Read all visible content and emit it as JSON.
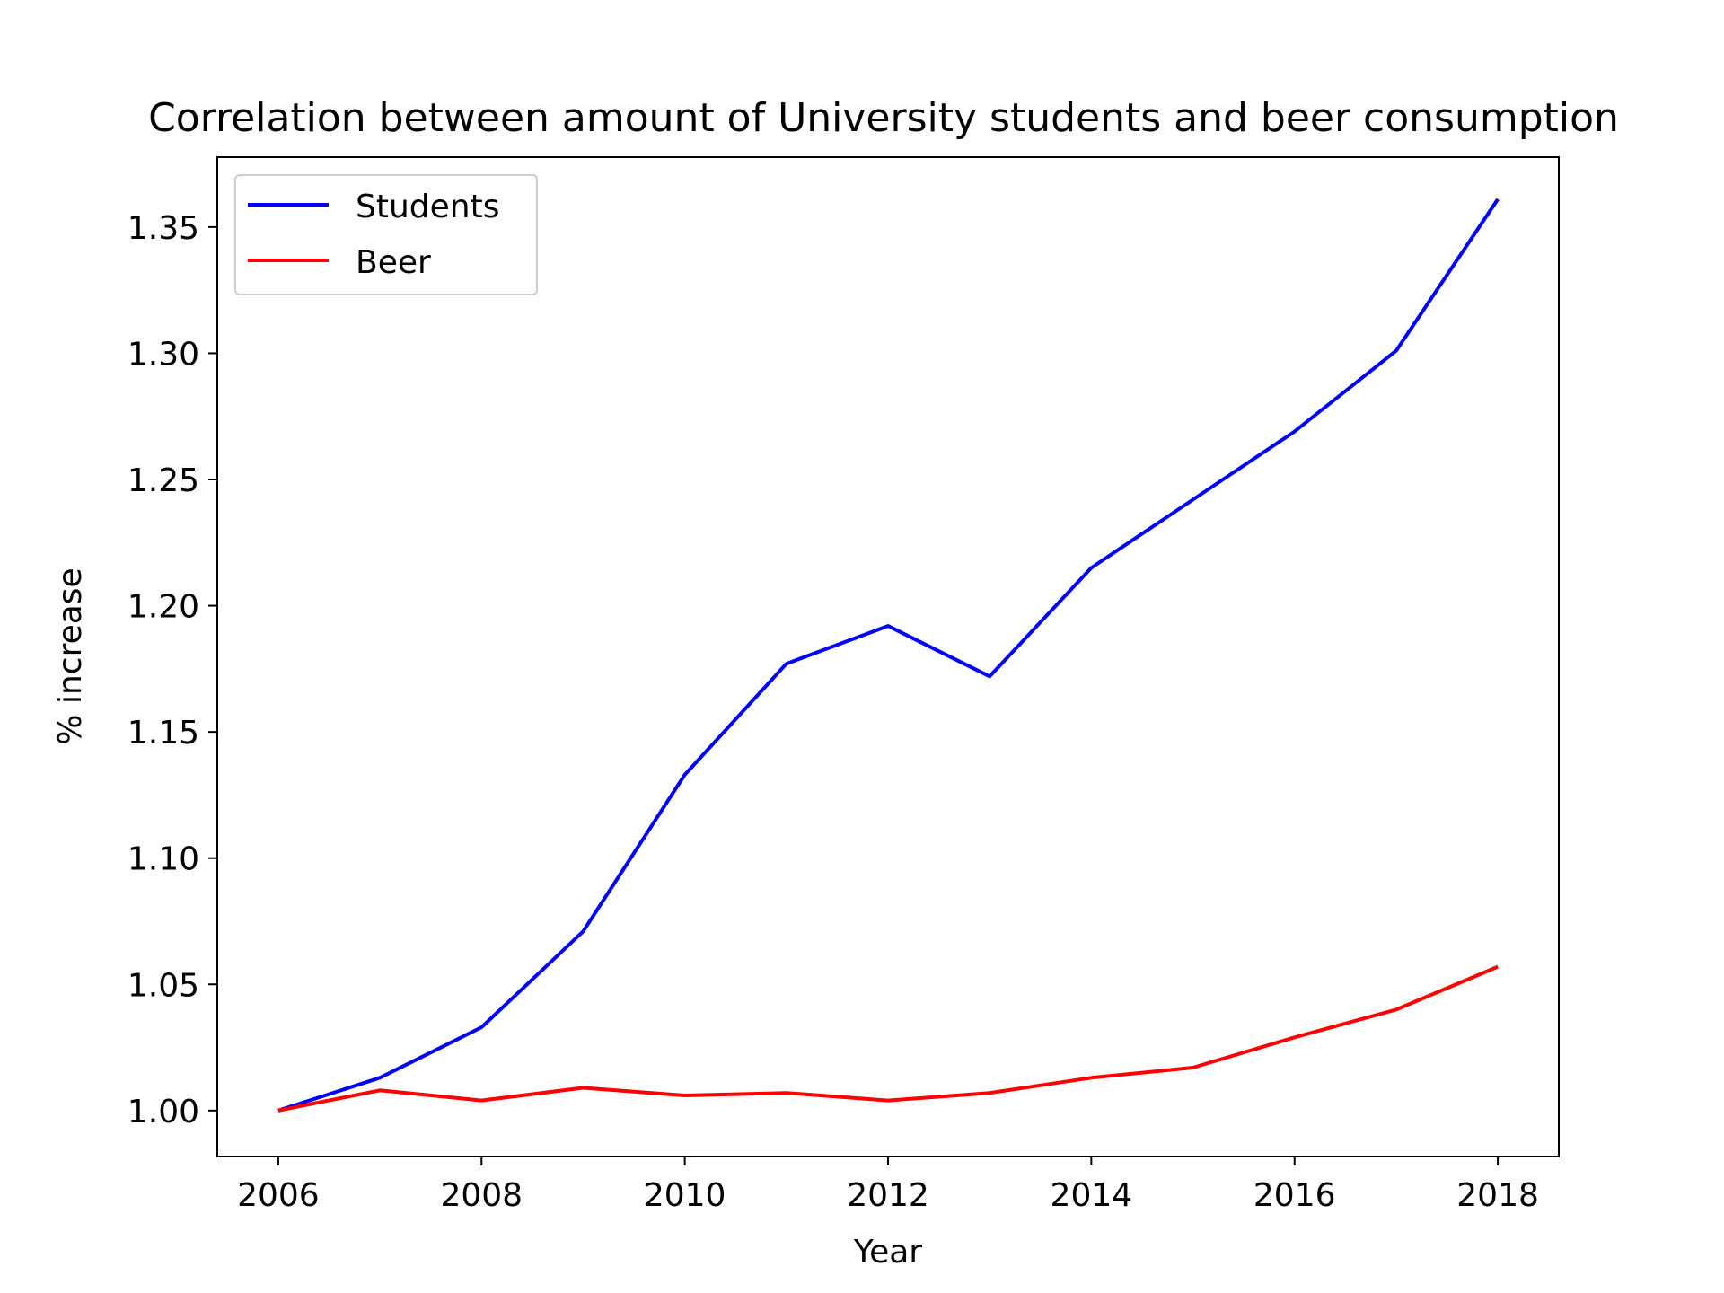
{
  "chart_data": {
    "type": "line",
    "title": "Correlation between amount of University students and beer consumption",
    "xlabel": "Year",
    "ylabel": "% increase",
    "xlim": [
      2005.4,
      2018.6
    ],
    "ylim": [
      0.9818,
      1.3777
    ],
    "xticks": [
      2006,
      2008,
      2010,
      2012,
      2014,
      2016,
      2018
    ],
    "yticks": [
      "1.00",
      "1.05",
      "1.10",
      "1.15",
      "1.20",
      "1.25",
      "1.30",
      "1.35"
    ],
    "x": [
      2006,
      2007,
      2008,
      2009,
      2010,
      2011,
      2012,
      2013,
      2014,
      2015,
      2016,
      2017,
      2018
    ],
    "series": [
      {
        "name": "Students",
        "color": "#0000ff",
        "values": [
          1.0,
          1.013,
          1.033,
          1.071,
          1.133,
          1.177,
          1.192,
          1.172,
          1.215,
          1.242,
          1.269,
          1.301,
          1.361
        ]
      },
      {
        "name": "Beer",
        "color": "#ff0000",
        "values": [
          1.0,
          1.008,
          1.004,
          1.009,
          1.006,
          1.007,
          1.004,
          1.007,
          1.013,
          1.017,
          1.029,
          1.04,
          1.057
        ]
      }
    ],
    "grid": false,
    "legend_position": "upper-left"
  }
}
